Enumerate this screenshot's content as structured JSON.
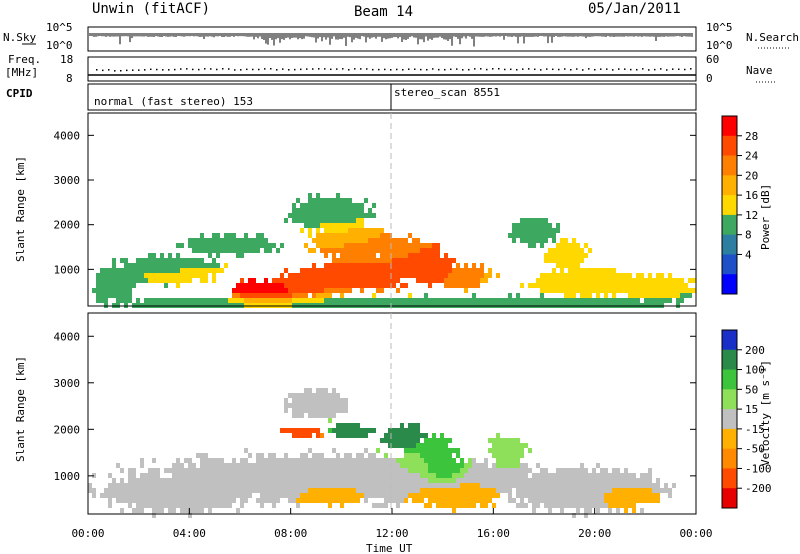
{
  "header": {
    "station": "Unwin (fitACF)",
    "beam": "Beam 14",
    "date": "05/Jan/2011"
  },
  "sky_panel": {
    "left_label": "N.Sky",
    "right_label": "N.Search",
    "left_ticks": [
      "10^5",
      "10^0"
    ],
    "right_ticks": [
      "10^5",
      "10^0"
    ]
  },
  "freq_panel": {
    "left_label_1": "Freq.",
    "left_label_2": "[MHz]",
    "right_label": "Nave",
    "left_ticks": [
      "18",
      "8"
    ],
    "right_ticks": [
      "60",
      "0"
    ]
  },
  "cpid": {
    "label": "CPID",
    "segments": [
      {
        "name": "normal (fast stereo) 153",
        "start_hour": 0
      },
      {
        "name": "stereo_scan 8551",
        "start_hour": 12
      }
    ]
  },
  "axes": {
    "xlabel": "Time UT",
    "x_ticks": [
      "00:00",
      "04:00",
      "08:00",
      "12:00",
      "16:00",
      "20:00",
      "00:00"
    ],
    "ylabel": "Slant Range [km]",
    "y_ticks": [
      "4000",
      "3000",
      "2000",
      "1000"
    ]
  },
  "power_scale": {
    "label": "Power [dB]",
    "ticks": [
      "28",
      "24",
      "20",
      "16",
      "12",
      "8",
      "4"
    ],
    "colors": [
      "#ff0000",
      "#ff4a00",
      "#ff7f00",
      "#ffb000",
      "#ffd800",
      "#3ca860",
      "#2c7fa0",
      "#1e50c8",
      "#0000ff"
    ]
  },
  "velocity_scale": {
    "label": "Velocity [m s⁻¹]",
    "ticks": [
      "200",
      "100",
      "50",
      "15",
      "-15",
      "-50",
      "-100",
      "-200"
    ],
    "colors": [
      "#1a2fc8",
      "#2a8a4a",
      "#3cc43c",
      "#8ee05a",
      "#c0c0c0",
      "#ffb000",
      "#ff8a00",
      "#ff4a00",
      "#e60000"
    ]
  },
  "chart_data": {
    "type": "heatmap",
    "x_unit": "hours UT",
    "xlim": [
      0,
      24
    ],
    "ylim": [
      180,
      4500
    ],
    "power_blobs": [
      {
        "t": 7.0,
        "r": 560,
        "dt": 1.3,
        "dr": 260,
        "v": 29
      },
      {
        "t": 9.0,
        "r": 760,
        "dt": 1.6,
        "dr": 320,
        "v": 22
      },
      {
        "t": 11.0,
        "r": 1000,
        "dt": 1.8,
        "dr": 380,
        "v": 23
      },
      {
        "t": 12.6,
        "r": 1300,
        "dt": 1.2,
        "dr": 420,
        "v": 22
      },
      {
        "t": 13.6,
        "r": 1050,
        "dt": 0.9,
        "dr": 300,
        "v": 26
      },
      {
        "t": 10.5,
        "r": 1650,
        "dt": 1.7,
        "dr": 350,
        "v": 18
      },
      {
        "t": 14.8,
        "r": 900,
        "dt": 1.0,
        "dr": 250,
        "v": 18
      },
      {
        "t": 3.0,
        "r": 1050,
        "dt": 2.0,
        "dr": 300,
        "v": 10
      },
      {
        "t": 1.0,
        "r": 750,
        "dt": 0.8,
        "dr": 350,
        "v": 10
      },
      {
        "t": 19.6,
        "r": 750,
        "dt": 2.0,
        "dr": 300,
        "v": 13
      },
      {
        "t": 18.8,
        "r": 1350,
        "dt": 0.8,
        "dr": 300,
        "v": 11
      },
      {
        "t": 17.5,
        "r": 1900,
        "dt": 0.9,
        "dr": 280,
        "v": 9
      },
      {
        "t": 5.5,
        "r": 1600,
        "dt": 1.7,
        "dr": 220,
        "v": 8
      },
      {
        "t": 9.5,
        "r": 2300,
        "dt": 1.5,
        "dr": 400,
        "v": 8
      },
      {
        "t": 22.3,
        "r": 650,
        "dt": 1.5,
        "dr": 250,
        "v": 11
      },
      {
        "t": 12.0,
        "r": 300,
        "dt": 11.5,
        "dr": 150,
        "v": 6
      }
    ],
    "velocity_blobs": [
      {
        "t": 10.0,
        "r": 1000,
        "dt": 8.0,
        "dr": 500,
        "v": 0
      },
      {
        "t": 3.5,
        "r": 700,
        "dt": 3.0,
        "dr": 400,
        "v": -5
      },
      {
        "t": 19.5,
        "r": 750,
        "dt": 3.0,
        "dr": 450,
        "v": 2
      },
      {
        "t": 13.4,
        "r": 1500,
        "dt": 1.0,
        "dr": 380,
        "v": 60
      },
      {
        "t": 14.0,
        "r": 1250,
        "dt": 0.6,
        "dr": 250,
        "v": 150
      },
      {
        "t": 12.4,
        "r": 1900,
        "dt": 0.8,
        "dr": 250,
        "v": 180
      },
      {
        "t": 10.3,
        "r": 2000,
        "dt": 0.8,
        "dr": 150,
        "v": 180
      },
      {
        "t": 8.4,
        "r": 2000,
        "dt": 0.8,
        "dr": 120,
        "v": -180
      },
      {
        "t": 14.5,
        "r": 600,
        "dt": 1.5,
        "dr": 250,
        "v": -60
      },
      {
        "t": 9.5,
        "r": 600,
        "dt": 1.0,
        "dr": 200,
        "v": -60
      },
      {
        "t": 21.2,
        "r": 600,
        "dt": 0.9,
        "dr": 200,
        "v": -60
      },
      {
        "t": 16.5,
        "r": 1600,
        "dt": 0.7,
        "dr": 300,
        "v": 50
      },
      {
        "t": 9.0,
        "r": 2600,
        "dt": 1.2,
        "dr": 300,
        "v": 0
      }
    ]
  }
}
